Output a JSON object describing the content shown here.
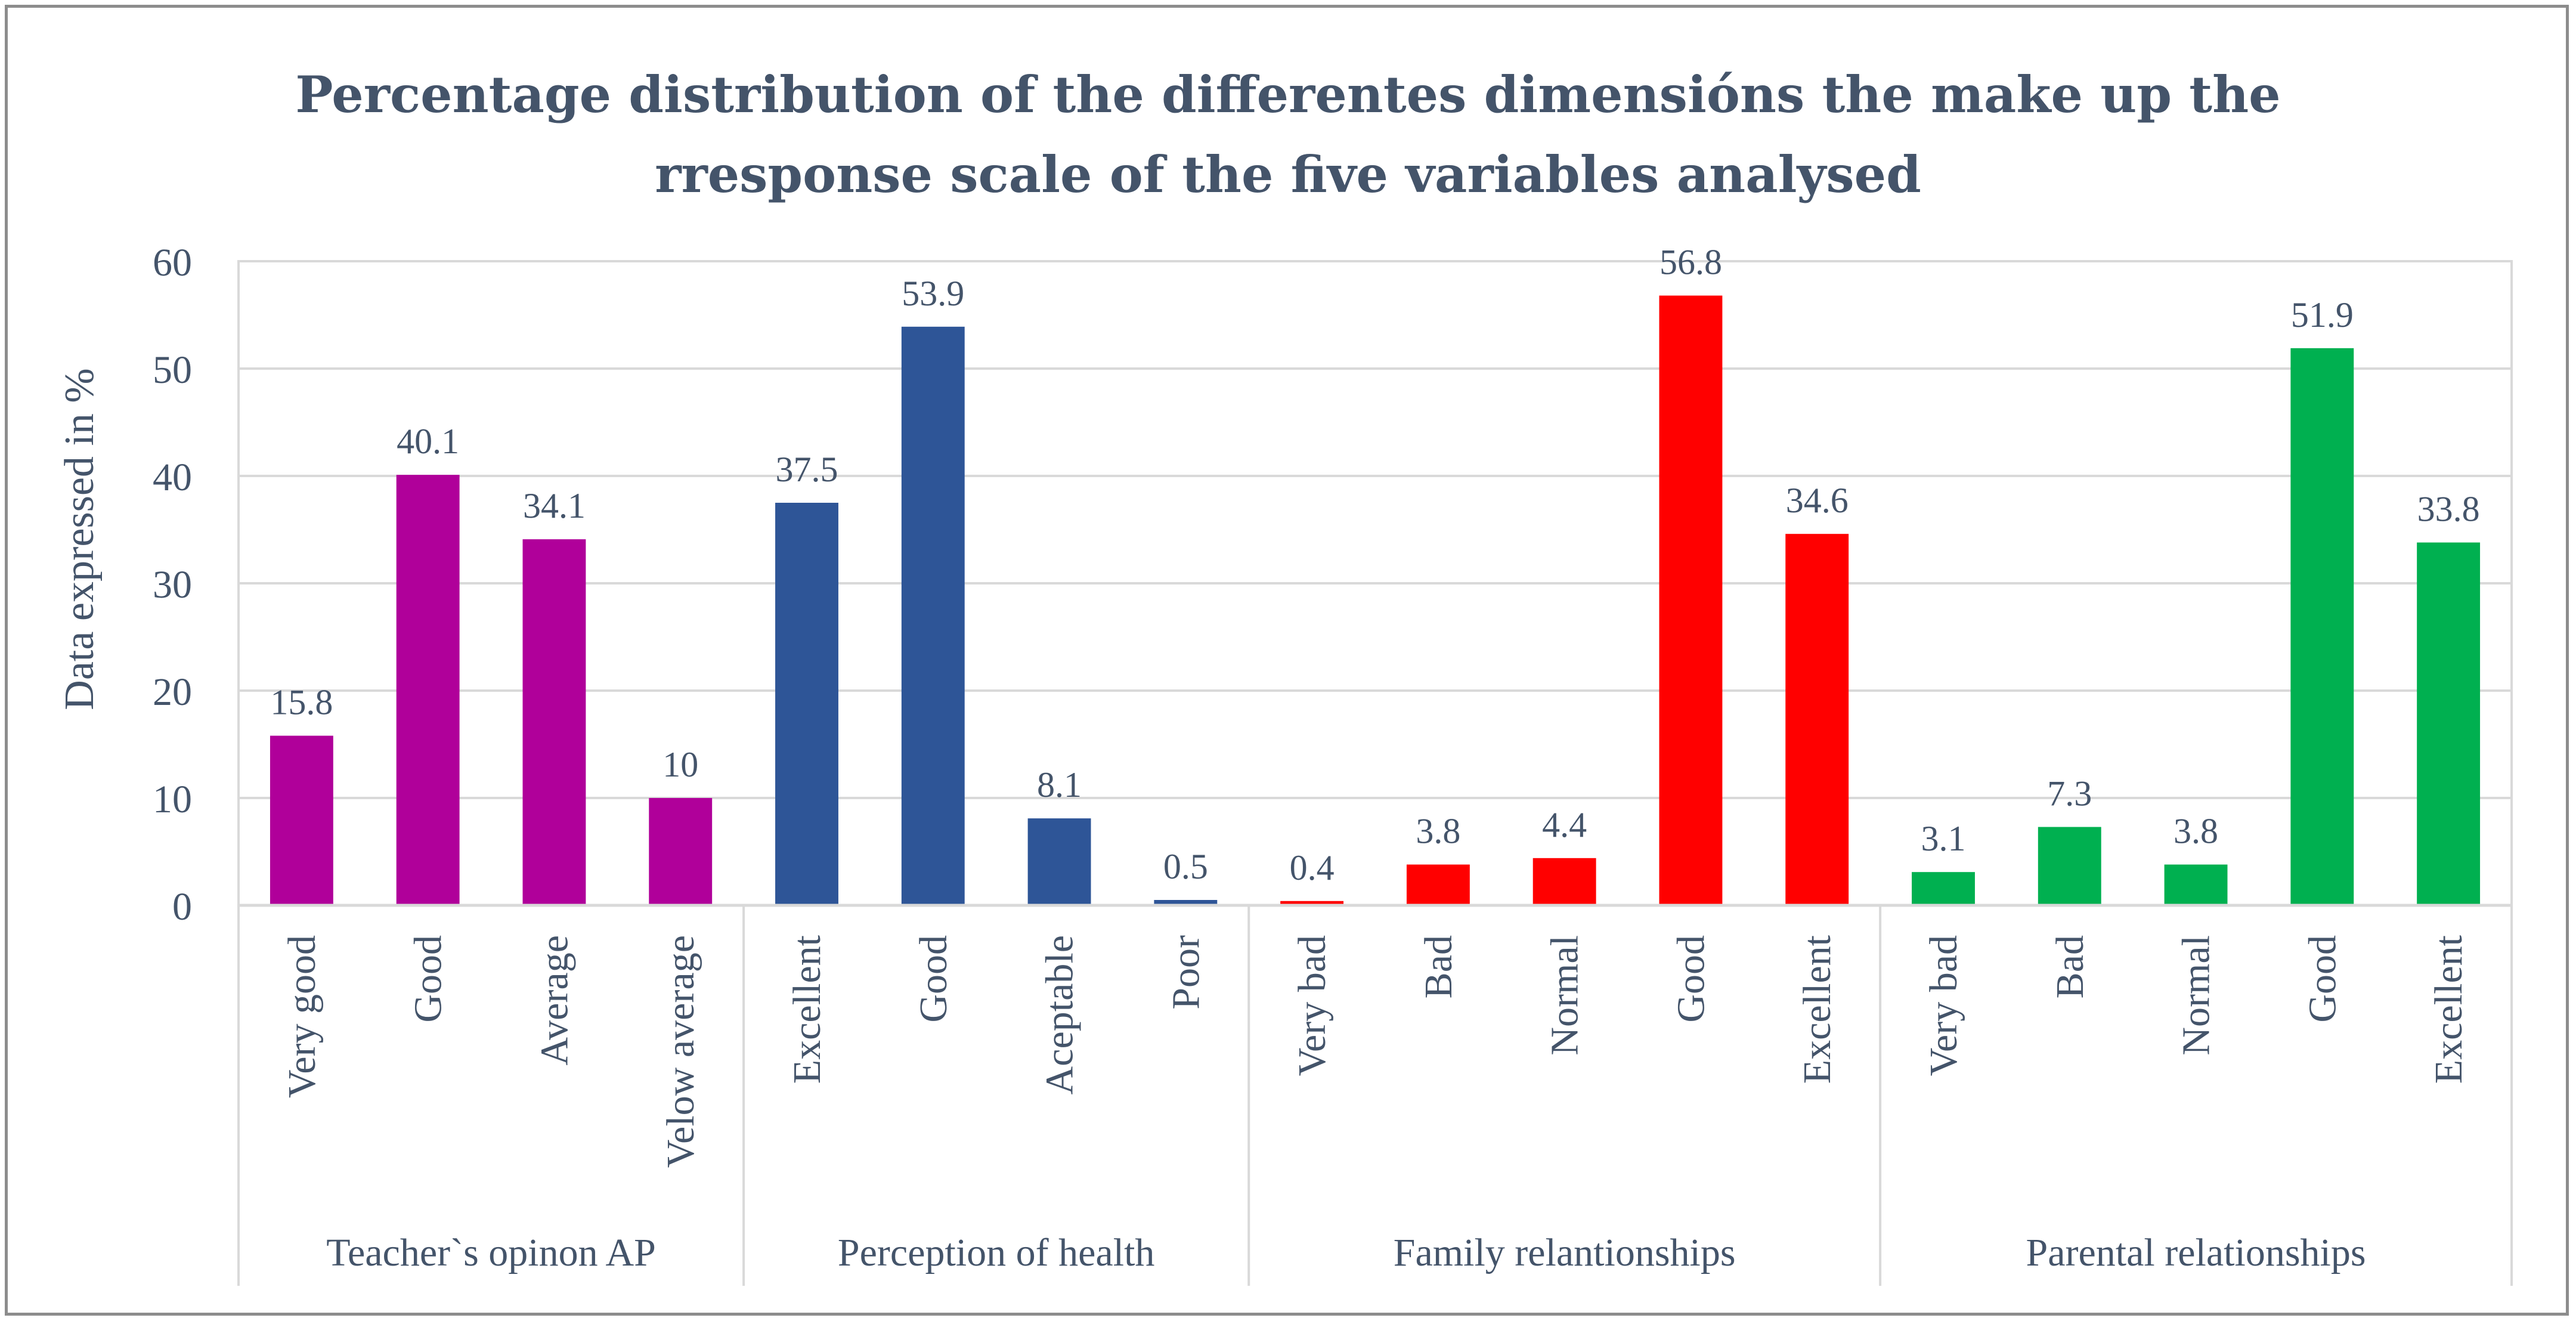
{
  "chart_data": {
    "type": "bar",
    "title_lines": [
      "Percentage distribution of the differentes dimensións the make up the",
      "rresponse scale of the five variables analysed"
    ],
    "ylabel": "Data expressed in %",
    "xlabel": "",
    "ylim": [
      0,
      60
    ],
    "yticks": [
      0,
      10,
      20,
      30,
      40,
      50,
      60
    ],
    "grid": true,
    "groups": [
      {
        "name": "Teacher`s opinon AP",
        "color": "#b0009a",
        "categories": [
          "Very good",
          "Good",
          "Average",
          "Velow average"
        ],
        "values": [
          15.8,
          40.1,
          34.1,
          10
        ]
      },
      {
        "name": "Perception of health",
        "color": "#2e5597",
        "categories": [
          "Excellent",
          "Good",
          "Aceptable",
          "Poor"
        ],
        "values": [
          37.5,
          53.9,
          8.1,
          0.5
        ]
      },
      {
        "name": "Family relantionships",
        "color": "#ff0000",
        "categories": [
          "Very bad",
          "Bad",
          "Normal",
          "Good",
          "Excellent"
        ],
        "values": [
          0.4,
          3.8,
          4.4,
          56.8,
          34.6
        ]
      },
      {
        "name": "Parental relationships",
        "color": "#00b050",
        "categories": [
          "Very bad",
          "Bad",
          "Normal",
          "Good",
          "Excellent"
        ],
        "values": [
          3.1,
          7.3,
          3.8,
          51.9,
          33.8
        ]
      }
    ]
  }
}
